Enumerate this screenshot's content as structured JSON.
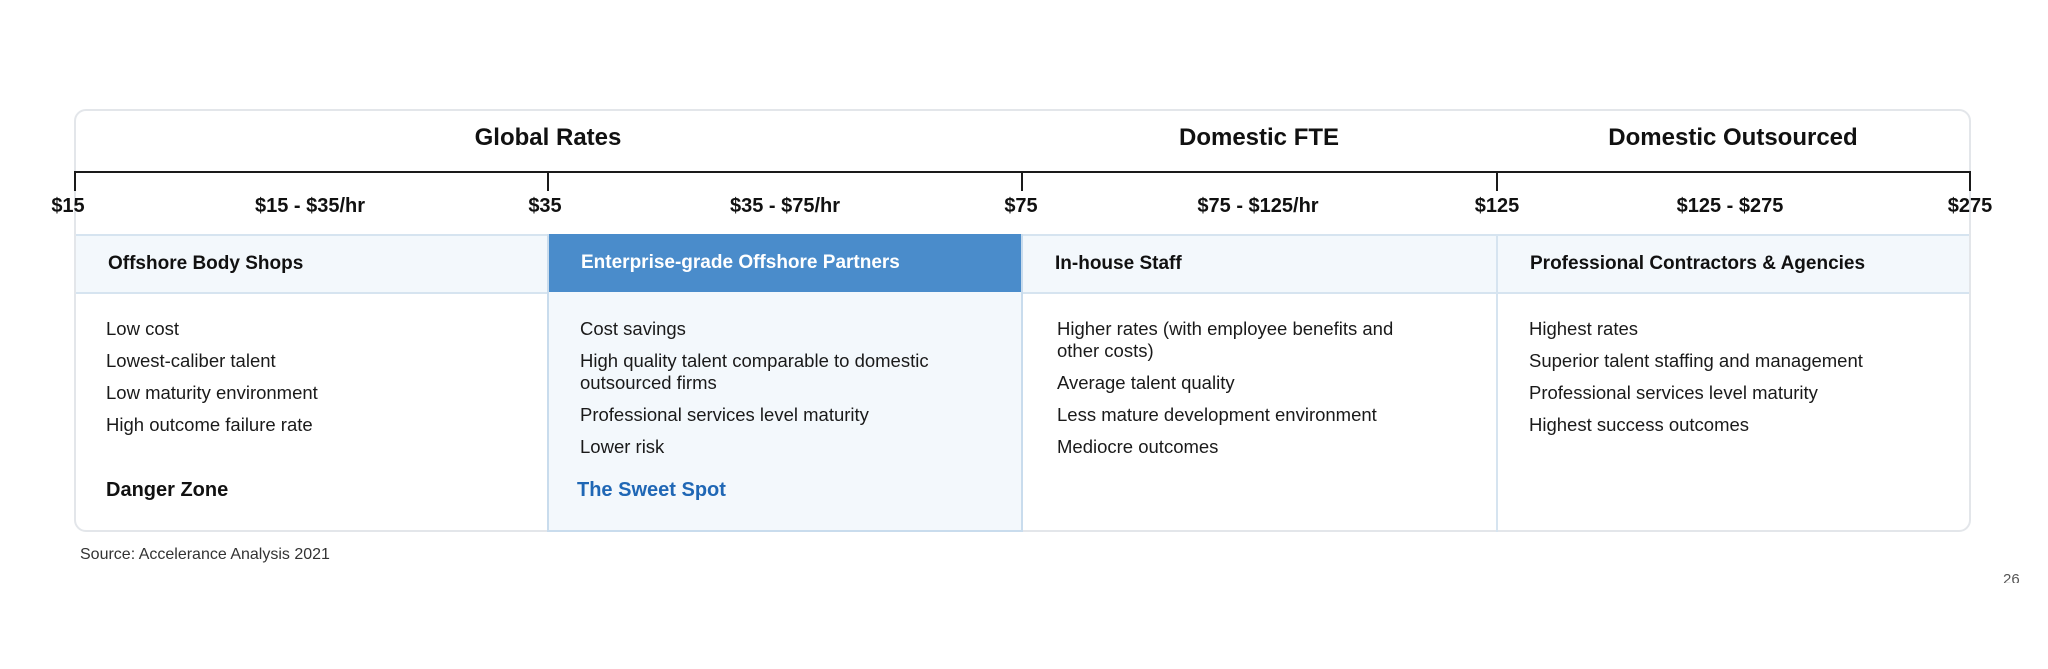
{
  "groups": {
    "global": "Global Rates",
    "domestic_fte": "Domestic FTE",
    "domestic_outsourced": "Domestic Outsourced"
  },
  "axis": {
    "ticks": [
      "$15",
      "$35",
      "$75",
      "$125",
      "$275"
    ],
    "ranges": [
      "$15 - $35/hr",
      "$35 - $75/hr",
      "$75 - $125/hr",
      "$125 - $275"
    ]
  },
  "columns": [
    {
      "title": "Offshore Body Shops",
      "bullets": [
        "Low cost",
        "Lowest-caliber talent",
        "Low maturity environment",
        "High outcome failure rate"
      ],
      "zone": "Danger Zone"
    },
    {
      "title": "Enterprise-grade Offshore Partners",
      "bullets": [
        "Cost savings",
        "High quality talent comparable to domestic outsourced firms",
        "Professional services level maturity",
        "Lower risk"
      ],
      "zone": "The Sweet Spot",
      "highlight": "#4a8ccb"
    },
    {
      "title": "In-house Staff",
      "bullets": [
        "Higher rates (with employee benefits and other costs)",
        "Average talent quality",
        "Less mature development environment",
        "Mediocre outcomes"
      ]
    },
    {
      "title": "Professional Contractors & Agencies",
      "bullets": [
        "Highest rates",
        "Superior talent staffing and management",
        "Professional services level maturity",
        "Highest success outcomes"
      ]
    }
  ],
  "source": "Source: Accelerance Analysis 2021",
  "page_number": "26"
}
